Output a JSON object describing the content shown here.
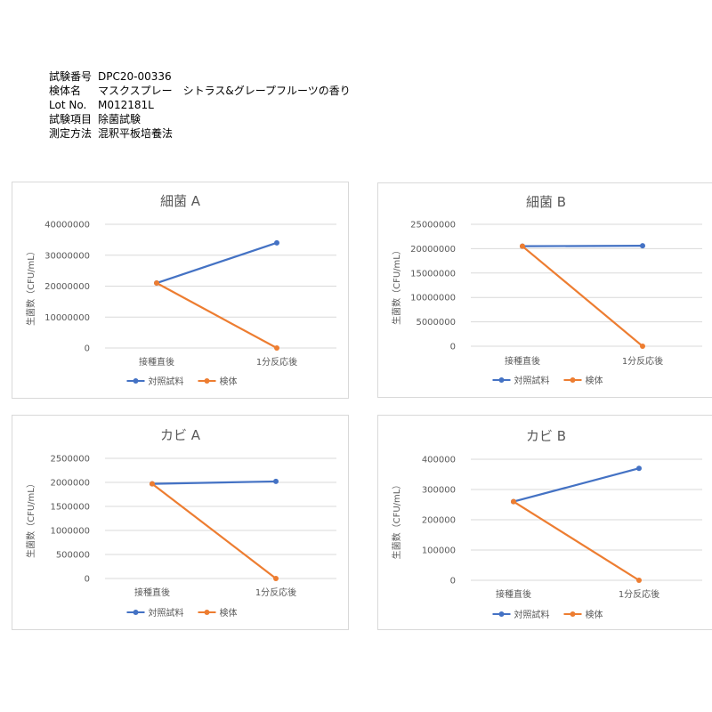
{
  "header": {
    "rows": [
      {
        "label": "試験番号",
        "value": "DPC20-00336"
      },
      {
        "label": "検体名",
        "value": "マスクスプレー　シトラス&グレープフルーツの香り"
      },
      {
        "label": "Lot No.",
        "value": "M012181L"
      },
      {
        "label": "試験項目",
        "value": "除菌試験"
      },
      {
        "label": "測定方法",
        "value": "混釈平板培養法"
      }
    ]
  },
  "colors": {
    "control": "#4472C4",
    "sample": "#ED7D31"
  },
  "chart_data": [
    {
      "type": "line",
      "title": "細菌 A",
      "ylabel": "生菌数（CFU/mL）",
      "categories": [
        "接種直後",
        "1分反応後"
      ],
      "ylim": [
        0,
        40000000
      ],
      "yticks": [
        0,
        10000000,
        20000000,
        30000000,
        40000000
      ],
      "legend_position": "bottom",
      "series": [
        {
          "name": "対照試料",
          "values": [
            21000000,
            34000000
          ]
        },
        {
          "name": "検体",
          "values": [
            21000000,
            0
          ]
        }
      ]
    },
    {
      "type": "line",
      "title": "細菌 B",
      "ylabel": "生菌数（CFU/mL）",
      "categories": [
        "接種直後",
        "1分反応後"
      ],
      "ylim": [
        0,
        25000000
      ],
      "yticks": [
        0,
        5000000,
        10000000,
        15000000,
        20000000,
        25000000
      ],
      "legend_position": "bottom",
      "series": [
        {
          "name": "対照試料",
          "values": [
            20500000,
            20600000
          ]
        },
        {
          "name": "検体",
          "values": [
            20500000,
            0
          ]
        }
      ]
    },
    {
      "type": "line",
      "title": "カビ A",
      "ylabel": "生菌数（CFU/mL）",
      "categories": [
        "接種直後",
        "1分反応後"
      ],
      "ylim": [
        0,
        2500000
      ],
      "yticks": [
        0,
        500000,
        1000000,
        1500000,
        2000000,
        2500000
      ],
      "legend_position": "bottom",
      "series": [
        {
          "name": "対照試料",
          "values": [
            1970000,
            2020000
          ]
        },
        {
          "name": "検体",
          "values": [
            1970000,
            0
          ]
        }
      ]
    },
    {
      "type": "line",
      "title": "カビ B",
      "ylabel": "生菌数（CFU/mL）",
      "categories": [
        "接種直後",
        "1分反応後"
      ],
      "ylim": [
        0,
        400000
      ],
      "yticks": [
        0,
        100000,
        200000,
        300000,
        400000
      ],
      "legend_position": "bottom",
      "series": [
        {
          "name": "対照試料",
          "values": [
            260000,
            370000
          ]
        },
        {
          "name": "検体",
          "values": [
            260000,
            0
          ]
        }
      ]
    }
  ]
}
